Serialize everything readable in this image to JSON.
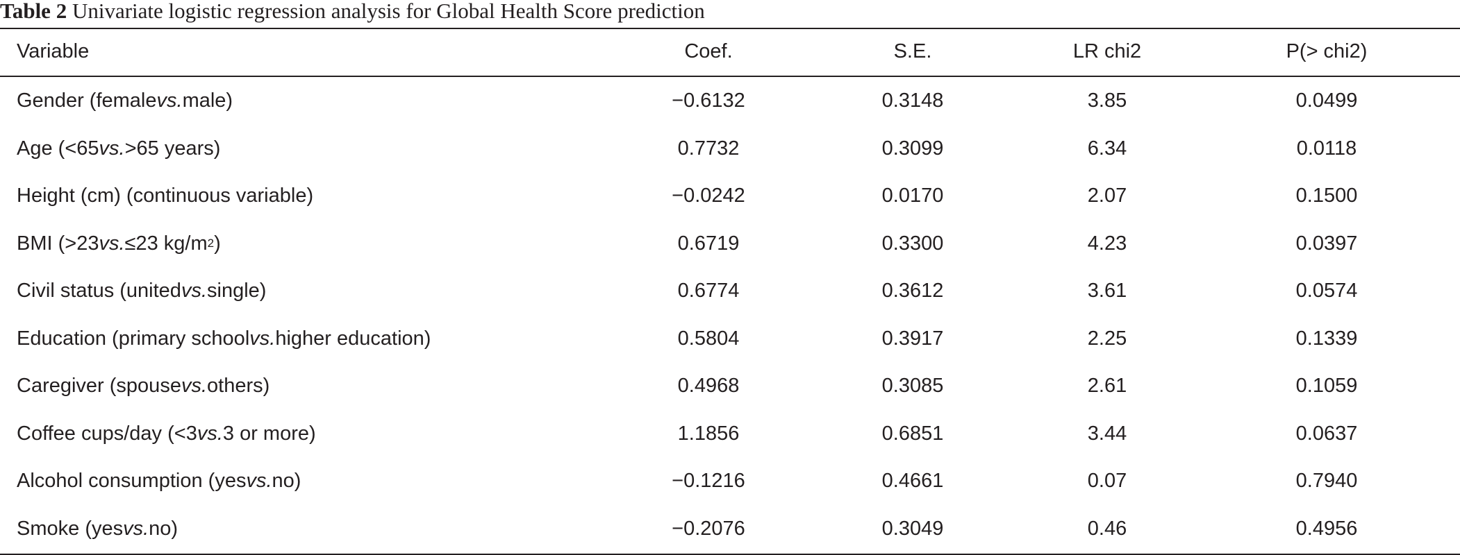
{
  "caption": {
    "label": "Table 2",
    "text": "Univariate logistic regression analysis for Global Health Score prediction"
  },
  "table": {
    "columns": [
      "Variable",
      "Coef.",
      "S.E.",
      "LR chi2",
      "P(> chi2)"
    ],
    "rows": [
      {
        "variable": {
          "pre": "Gender (female ",
          "it": "vs.",
          "post": " male)",
          "sup": "",
          "after": ""
        },
        "coef": "−0.6132",
        "se": "0.3148",
        "lr_chi2": "3.85",
        "p": "0.0499"
      },
      {
        "variable": {
          "pre": "Age (<65 ",
          "it": "vs.",
          "post": " >65 years)",
          "sup": "",
          "after": ""
        },
        "coef": "0.7732",
        "se": "0.3099",
        "lr_chi2": "6.34",
        "p": "0.0118"
      },
      {
        "variable": {
          "pre": "Height (cm) (continuous variable)",
          "it": "",
          "post": "",
          "sup": "",
          "after": ""
        },
        "coef": "−0.0242",
        "se": "0.0170",
        "lr_chi2": "2.07",
        "p": "0.1500"
      },
      {
        "variable": {
          "pre": "BMI (>23 ",
          "it": "vs.",
          "post": " ≤23 kg/m",
          "sup": "2",
          "after": ")"
        },
        "coef": "0.6719",
        "se": "0.3300",
        "lr_chi2": "4.23",
        "p": "0.0397"
      },
      {
        "variable": {
          "pre": "Civil status (united ",
          "it": "vs.",
          "post": " single)",
          "sup": "",
          "after": ""
        },
        "coef": "0.6774",
        "se": "0.3612",
        "lr_chi2": "3.61",
        "p": "0.0574"
      },
      {
        "variable": {
          "pre": "Education (primary school ",
          "it": "vs.",
          "post": " higher education)",
          "sup": "",
          "after": ""
        },
        "coef": "0.5804",
        "se": "0.3917",
        "lr_chi2": "2.25",
        "p": "0.1339"
      },
      {
        "variable": {
          "pre": "Caregiver (spouse ",
          "it": "vs.",
          "post": " others)",
          "sup": "",
          "after": ""
        },
        "coef": "0.4968",
        "se": "0.3085",
        "lr_chi2": "2.61",
        "p": "0.1059"
      },
      {
        "variable": {
          "pre": "Coffee cups/day (<3 ",
          "it": "vs.",
          "post": " 3 or more)",
          "sup": "",
          "after": ""
        },
        "coef": "1.1856",
        "se": "0.6851",
        "lr_chi2": "3.44",
        "p": "0.0637"
      },
      {
        "variable": {
          "pre": "Alcohol consumption (yes ",
          "it": "vs.",
          "post": " no)",
          "sup": "",
          "after": ""
        },
        "coef": "−0.1216",
        "se": "0.4661",
        "lr_chi2": "0.07",
        "p": "0.7940"
      },
      {
        "variable": {
          "pre": "Smoke (yes ",
          "it": "vs.",
          "post": " no)",
          "sup": "",
          "after": ""
        },
        "coef": "−0.2076",
        "se": "0.3049",
        "lr_chi2": "0.46",
        "p": "0.4956"
      }
    ]
  }
}
